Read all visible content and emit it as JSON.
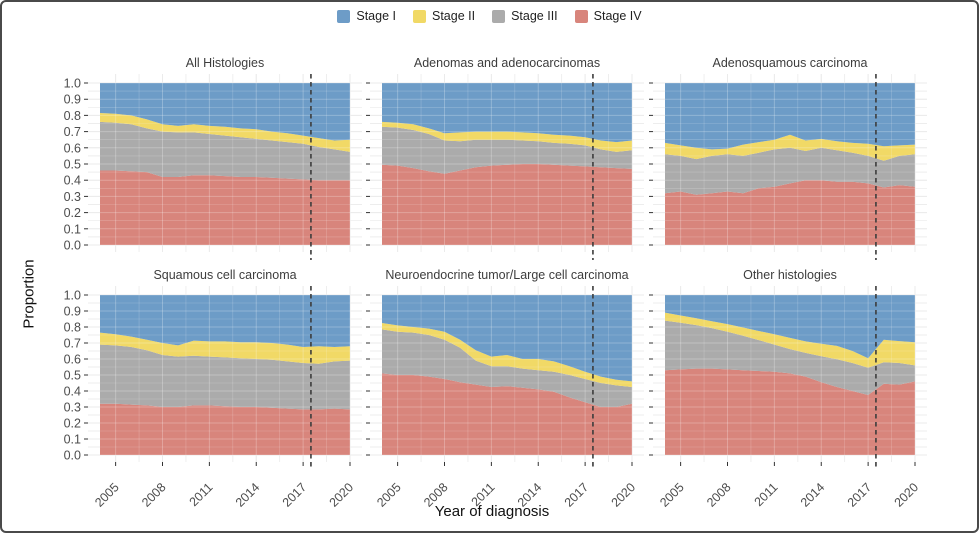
{
  "figure": {
    "y_axis_title": "Proportion",
    "x_axis_title": "Year of diagnosis"
  },
  "legend": {
    "items": [
      {
        "label": "Stage I",
        "color": "#6d9cc7"
      },
      {
        "label": "Stage II",
        "color": "#f1d966"
      },
      {
        "label": "Stage III",
        "color": "#ababab"
      },
      {
        "label": "Stage IV",
        "color": "#d8857c"
      }
    ]
  },
  "chart_data": {
    "type": "area",
    "stacked": true,
    "grid": true,
    "legend_position": "top-center",
    "x": [
      2004,
      2005,
      2006,
      2007,
      2008,
      2009,
      2010,
      2011,
      2012,
      2013,
      2014,
      2015,
      2016,
      2017,
      2018,
      2019,
      2020
    ],
    "x_ticks": [
      "2005",
      "2008",
      "2011",
      "2014",
      "2017",
      "2020"
    ],
    "x_tick_years": [
      2005,
      2008,
      2011,
      2014,
      2017,
      2020
    ],
    "y_ticks": [
      "0.0",
      "0.1",
      "0.2",
      "0.3",
      "0.4",
      "0.5",
      "0.6",
      "0.7",
      "0.8",
      "0.9",
      "1.0"
    ],
    "ylim": [
      0,
      1
    ],
    "xlim": [
      2004,
      2020
    ],
    "reference_line_x": 2017.5,
    "reference_line_style": "dashed",
    "stack_order_bottom_to_top": [
      "Stage IV",
      "Stage III",
      "Stage II",
      "Stage I"
    ],
    "panels": [
      {
        "title": "All Histologies",
        "series": {
          "Stage IV": [
            0.46,
            0.46,
            0.455,
            0.45,
            0.42,
            0.42,
            0.43,
            0.43,
            0.425,
            0.42,
            0.42,
            0.415,
            0.41,
            0.405,
            0.4,
            0.4,
            0.4
          ],
          "Stage III": [
            0.3,
            0.295,
            0.29,
            0.27,
            0.28,
            0.275,
            0.265,
            0.255,
            0.25,
            0.245,
            0.235,
            0.23,
            0.225,
            0.22,
            0.205,
            0.19,
            0.175
          ],
          "Stage II": [
            0.055,
            0.055,
            0.055,
            0.055,
            0.045,
            0.04,
            0.05,
            0.05,
            0.055,
            0.055,
            0.06,
            0.055,
            0.055,
            0.05,
            0.055,
            0.055,
            0.075
          ],
          "Stage I": [
            0.185,
            0.19,
            0.2,
            0.225,
            0.255,
            0.265,
            0.255,
            0.265,
            0.27,
            0.28,
            0.285,
            0.3,
            0.31,
            0.325,
            0.34,
            0.355,
            0.35
          ]
        }
      },
      {
        "title": "Adenomas and adenocarcinomas",
        "series": {
          "Stage IV": [
            0.495,
            0.49,
            0.475,
            0.455,
            0.44,
            0.46,
            0.48,
            0.49,
            0.495,
            0.5,
            0.5,
            0.495,
            0.49,
            0.485,
            0.48,
            0.475,
            0.47
          ],
          "Stage III": [
            0.235,
            0.235,
            0.235,
            0.23,
            0.205,
            0.18,
            0.17,
            0.16,
            0.155,
            0.145,
            0.14,
            0.135,
            0.135,
            0.13,
            0.11,
            0.1,
            0.115
          ],
          "Stage II": [
            0.03,
            0.03,
            0.035,
            0.035,
            0.045,
            0.055,
            0.05,
            0.05,
            0.05,
            0.05,
            0.05,
            0.05,
            0.05,
            0.05,
            0.055,
            0.06,
            0.06
          ],
          "Stage I": [
            0.24,
            0.245,
            0.255,
            0.28,
            0.31,
            0.305,
            0.3,
            0.3,
            0.3,
            0.305,
            0.31,
            0.32,
            0.325,
            0.335,
            0.355,
            0.365,
            0.355
          ]
        }
      },
      {
        "title": "Adenosquamous carcinoma",
        "series": {
          "Stage IV": [
            0.32,
            0.33,
            0.31,
            0.32,
            0.33,
            0.32,
            0.35,
            0.36,
            0.38,
            0.4,
            0.4,
            0.39,
            0.39,
            0.38,
            0.355,
            0.37,
            0.36
          ],
          "Stage III": [
            0.24,
            0.22,
            0.22,
            0.23,
            0.23,
            0.23,
            0.22,
            0.23,
            0.22,
            0.18,
            0.2,
            0.195,
            0.18,
            0.17,
            0.165,
            0.18,
            0.2
          ],
          "Stage II": [
            0.07,
            0.065,
            0.07,
            0.04,
            0.035,
            0.07,
            0.065,
            0.06,
            0.08,
            0.065,
            0.055,
            0.055,
            0.06,
            0.075,
            0.09,
            0.065,
            0.06
          ],
          "Stage I": [
            0.37,
            0.385,
            0.4,
            0.41,
            0.405,
            0.38,
            0.365,
            0.35,
            0.32,
            0.355,
            0.345,
            0.36,
            0.37,
            0.375,
            0.39,
            0.385,
            0.38
          ]
        }
      },
      {
        "title": "Squamous cell carcinoma",
        "series": {
          "Stage IV": [
            0.32,
            0.32,
            0.315,
            0.31,
            0.3,
            0.3,
            0.31,
            0.31,
            0.305,
            0.3,
            0.3,
            0.295,
            0.29,
            0.285,
            0.285,
            0.29,
            0.285
          ],
          "Stage III": [
            0.37,
            0.365,
            0.36,
            0.345,
            0.325,
            0.315,
            0.31,
            0.305,
            0.305,
            0.305,
            0.3,
            0.3,
            0.295,
            0.29,
            0.285,
            0.295,
            0.305
          ],
          "Stage II": [
            0.075,
            0.07,
            0.065,
            0.065,
            0.075,
            0.07,
            0.095,
            0.095,
            0.1,
            0.1,
            0.105,
            0.105,
            0.105,
            0.1,
            0.11,
            0.09,
            0.09
          ],
          "Stage I": [
            0.235,
            0.245,
            0.26,
            0.28,
            0.3,
            0.315,
            0.285,
            0.29,
            0.29,
            0.295,
            0.295,
            0.3,
            0.31,
            0.325,
            0.32,
            0.325,
            0.32
          ]
        }
      },
      {
        "title": "Neuroendocrine tumor/Large cell carcinoma",
        "series": {
          "Stage IV": [
            0.51,
            0.5,
            0.5,
            0.49,
            0.475,
            0.455,
            0.44,
            0.425,
            0.43,
            0.42,
            0.41,
            0.395,
            0.36,
            0.33,
            0.3,
            0.3,
            0.32
          ],
          "Stage III": [
            0.275,
            0.27,
            0.265,
            0.26,
            0.245,
            0.215,
            0.15,
            0.13,
            0.125,
            0.12,
            0.12,
            0.125,
            0.14,
            0.145,
            0.15,
            0.135,
            0.105
          ],
          "Stage II": [
            0.04,
            0.04,
            0.035,
            0.04,
            0.05,
            0.05,
            0.065,
            0.06,
            0.07,
            0.06,
            0.07,
            0.065,
            0.055,
            0.045,
            0.04,
            0.035,
            0.035
          ],
          "Stage I": [
            0.175,
            0.19,
            0.2,
            0.21,
            0.23,
            0.28,
            0.345,
            0.385,
            0.375,
            0.4,
            0.4,
            0.415,
            0.445,
            0.48,
            0.51,
            0.53,
            0.54
          ]
        }
      },
      {
        "title": "Other histologies",
        "series": {
          "Stage IV": [
            0.53,
            0.535,
            0.54,
            0.54,
            0.535,
            0.53,
            0.525,
            0.52,
            0.51,
            0.49,
            0.455,
            0.425,
            0.4,
            0.375,
            0.445,
            0.44,
            0.46
          ],
          "Stage III": [
            0.31,
            0.292,
            0.272,
            0.253,
            0.235,
            0.215,
            0.193,
            0.17,
            0.152,
            0.148,
            0.162,
            0.173,
            0.175,
            0.17,
            0.135,
            0.135,
            0.1
          ],
          "Stage II": [
            0.05,
            0.045,
            0.043,
            0.043,
            0.048,
            0.052,
            0.057,
            0.065,
            0.07,
            0.072,
            0.078,
            0.084,
            0.075,
            0.06,
            0.14,
            0.137,
            0.145
          ],
          "Stage I": [
            0.11,
            0.128,
            0.145,
            0.164,
            0.182,
            0.203,
            0.225,
            0.245,
            0.268,
            0.29,
            0.305,
            0.318,
            0.35,
            0.395,
            0.28,
            0.288,
            0.295
          ]
        }
      }
    ]
  }
}
